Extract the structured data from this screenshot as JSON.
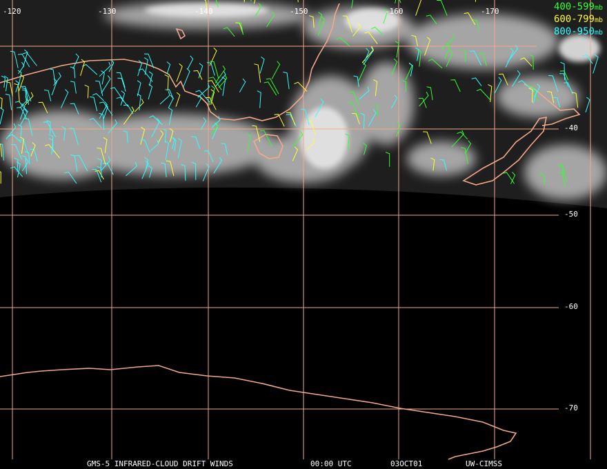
{
  "map": {
    "colors": {
      "background": "#000000",
      "grid": "#f4a988",
      "coastline": "#f4a988",
      "cloud": "#d8d8d8",
      "label": "#ffffff"
    },
    "longitude_labels": [
      "-120",
      "-130",
      "-140",
      "-150",
      "-160",
      "-170"
    ],
    "latitude_labels": [
      "-40",
      "-50",
      "-60",
      "-70"
    ],
    "legend": [
      {
        "range": "400-599",
        "unit": "mb",
        "color": "#33ff33"
      },
      {
        "range": "600-799",
        "unit": "mb",
        "color": "#ffff33"
      },
      {
        "range": "800-950",
        "unit": "mb",
        "color": "#33ffff"
      }
    ]
  },
  "footer": {
    "product": "GMS-5 INFRARED-CLOUD DRIFT WINDS",
    "time": "00:00 UTC",
    "date": "03OCT01",
    "source": "UW-CIMSS"
  }
}
